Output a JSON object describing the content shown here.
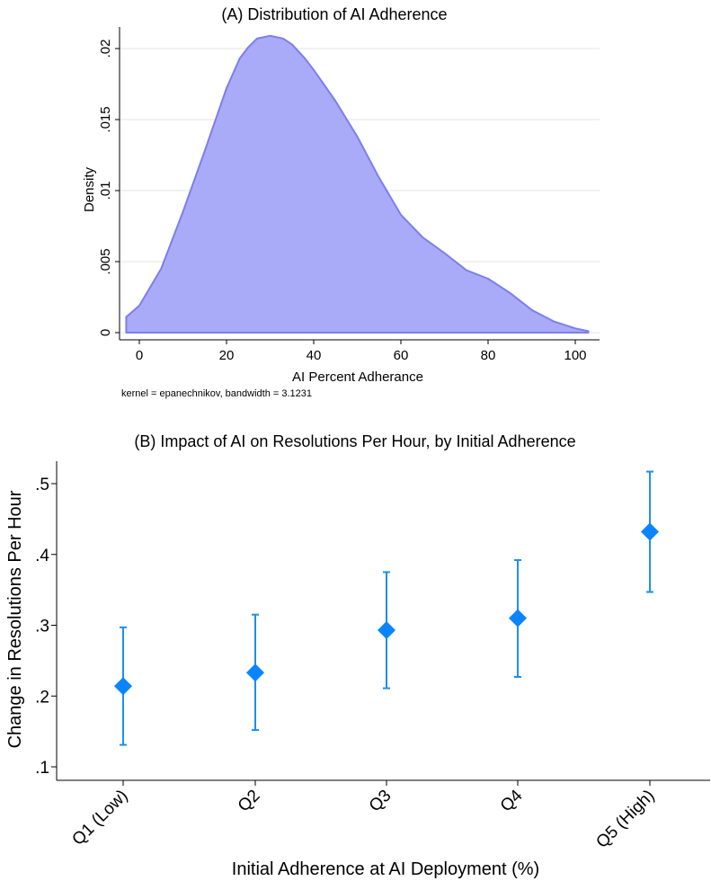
{
  "chart_data": [
    {
      "type": "area",
      "title": "(A)  Distribution of AI Adherence",
      "xlabel": "AI Percent Adherance",
      "ylabel": "Density",
      "note": "kernel = epanechnikov, bandwidth = 3.1231",
      "xlim": [
        -3,
        103
      ],
      "ylim": [
        0,
        0.021
      ],
      "x_ticks": [
        0,
        20,
        40,
        60,
        80,
        100
      ],
      "x_tick_labels": [
        "0",
        "20",
        "40",
        "60",
        "80",
        "100"
      ],
      "y_ticks": [
        0,
        0.005,
        0.01,
        0.015,
        0.02
      ],
      "y_tick_labels": [
        "0",
        ".005",
        ".01",
        ".015",
        ".02"
      ],
      "grid": true,
      "fill_color": "#a9abf8",
      "line_color": "#7b7ef0",
      "x": [
        -3,
        0,
        5,
        10,
        15,
        20,
        23,
        25,
        27,
        30,
        33,
        35,
        38,
        40,
        45,
        50,
        55,
        60,
        65,
        70,
        75,
        80,
        85,
        90,
        95,
        100,
        103
      ],
      "y": [
        0.0011,
        0.0019,
        0.0045,
        0.0085,
        0.0128,
        0.0172,
        0.0193,
        0.0201,
        0.0207,
        0.0209,
        0.0207,
        0.0203,
        0.0193,
        0.0185,
        0.0163,
        0.0138,
        0.0109,
        0.0083,
        0.0067,
        0.0056,
        0.0044,
        0.0038,
        0.0028,
        0.0016,
        0.0008,
        0.0003,
        0.0001
      ]
    },
    {
      "type": "scatter",
      "title": "(B)  Impact of AI on Resolutions Per Hour, by Initial Adherence",
      "xlabel": "Initial Adherence at AI Deployment (%)",
      "ylabel": "Change in Resolutions Per Hour",
      "categories": [
        "Q1 (Low)",
        "Q2",
        "Q3",
        "Q4",
        "Q5 (High)"
      ],
      "values": [
        0.214,
        0.233,
        0.293,
        0.31,
        0.432
      ],
      "ci_low": [
        0.131,
        0.152,
        0.211,
        0.227,
        0.347
      ],
      "ci_high": [
        0.297,
        0.315,
        0.375,
        0.392,
        0.517
      ],
      "ylim": [
        0.09,
        0.53
      ],
      "y_ticks": [
        0.1,
        0.2,
        0.3,
        0.4,
        0.5
      ],
      "y_tick_labels": [
        ".1",
        ".2",
        ".3",
        ".4",
        ".5"
      ],
      "marker_color": "#0a84ff",
      "bar_color": "#1f8fea"
    }
  ]
}
